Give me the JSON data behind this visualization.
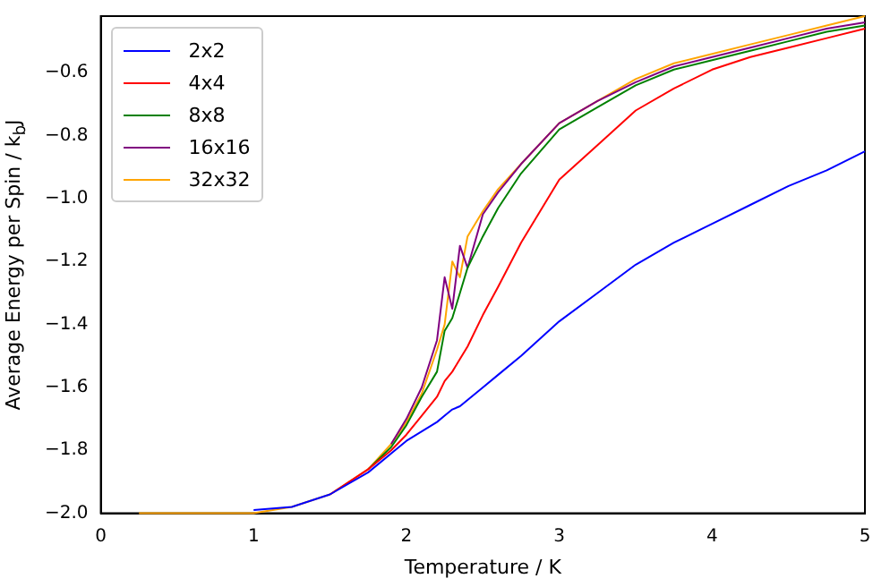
{
  "chart_data": {
    "type": "line",
    "xlabel": "Temperature / K",
    "ylabel": "Average Energy per Spin / k$_{b}$J",
    "x": [
      0.25,
      0.5,
      0.75,
      1.0,
      1.25,
      1.5,
      1.75,
      1.9,
      2.0,
      2.1,
      2.2,
      2.25,
      2.3,
      2.35,
      2.4,
      2.5,
      2.6,
      2.75,
      3.0,
      3.25,
      3.5,
      3.75,
      4.0,
      4.25,
      4.5,
      4.75,
      5.0
    ],
    "series": [
      {
        "name": "2x2",
        "color": "#0000ff",
        "values": [
          null,
          null,
          null,
          -1.99,
          -1.98,
          -1.94,
          -1.87,
          -1.81,
          -1.77,
          -1.74,
          -1.71,
          -1.69,
          -1.67,
          -1.66,
          -1.64,
          -1.6,
          -1.56,
          -1.5,
          -1.39,
          -1.3,
          -1.21,
          -1.14,
          -1.08,
          -1.02,
          -0.96,
          -0.91,
          -0.85
        ]
      },
      {
        "name": "4x4",
        "color": "#ff0000",
        "values": [
          null,
          null,
          null,
          null,
          null,
          -1.94,
          -1.86,
          -1.8,
          -1.75,
          -1.69,
          -1.63,
          -1.58,
          -1.55,
          -1.51,
          -1.47,
          -1.37,
          -1.28,
          -1.14,
          -0.94,
          -0.83,
          -0.72,
          -0.65,
          -0.59,
          -0.55,
          -0.52,
          -0.49,
          -0.46
        ]
      },
      {
        "name": "8x8",
        "color": "#008000",
        "values": [
          null,
          null,
          null,
          null,
          null,
          null,
          -1.86,
          -1.79,
          -1.72,
          -1.63,
          -1.55,
          -1.42,
          -1.38,
          -1.3,
          -1.22,
          -1.12,
          -1.03,
          -0.92,
          -0.78,
          -0.71,
          -0.64,
          -0.59,
          -0.56,
          -0.53,
          -0.5,
          -0.47,
          -0.45
        ]
      },
      {
        "name": "16x16",
        "color": "#800080",
        "values": [
          null,
          null,
          null,
          null,
          null,
          null,
          null,
          -1.78,
          -1.7,
          -1.6,
          -1.45,
          -1.25,
          -1.35,
          -1.15,
          -1.22,
          -1.05,
          -0.98,
          -0.89,
          -0.76,
          -0.69,
          -0.63,
          -0.58,
          -0.55,
          -0.52,
          -0.49,
          -0.46,
          -0.44
        ]
      },
      {
        "name": "32x32",
        "color": "#ffa500",
        "values": [
          -2,
          -2,
          -2,
          -2,
          -1.98,
          -1.94,
          -1.86,
          -1.78,
          -1.71,
          -1.62,
          -1.48,
          -1.4,
          -1.2,
          -1.25,
          -1.12,
          -1.04,
          -0.97,
          -0.89,
          -0.76,
          -0.69,
          -0.62,
          -0.57,
          -0.54,
          -0.51,
          -0.48,
          -0.45,
          -0.42
        ]
      }
    ],
    "xlim": [
      0,
      5
    ],
    "xticks": [
      0,
      1,
      2,
      3,
      4,
      5
    ],
    "ylim": [
      -2.0,
      -0.42
    ],
    "yticks": [
      {
        "value": -2.0,
        "label": "−2.0"
      },
      {
        "value": -1.8,
        "label": "−1.8"
      },
      {
        "value": -1.6,
        "label": "−1.6"
      },
      {
        "value": -1.4,
        "label": "−1.4"
      },
      {
        "value": -1.2,
        "label": "−1.2"
      },
      {
        "value": -1.0,
        "label": "−1.0"
      },
      {
        "value": -0.8,
        "label": "−0.8"
      },
      {
        "value": -0.6,
        "label": "−0.6"
      }
    ],
    "grid": false,
    "legend": "top left",
    "marker": "none",
    "line_style": "solid"
  }
}
